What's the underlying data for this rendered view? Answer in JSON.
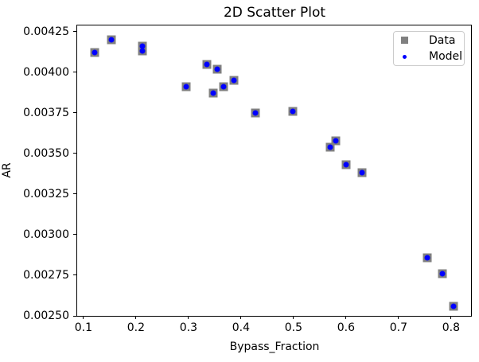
{
  "title": "2D Scatter Plot",
  "axes": {
    "xlabel": "Bypass_Fraction",
    "ylabel": "AR",
    "x_tick_values": [
      0.1,
      0.2,
      0.3,
      0.4,
      0.5,
      0.6,
      0.7,
      0.8
    ],
    "x_tick_labels": [
      "0.1",
      "0.2",
      "0.3",
      "0.4",
      "0.5",
      "0.6",
      "0.7",
      "0.8"
    ],
    "y_tick_values": [
      0.0025,
      0.00275,
      0.003,
      0.00325,
      0.0035,
      0.00375,
      0.004,
      0.00425
    ],
    "y_tick_labels": [
      "0.00250",
      "0.00275",
      "0.00300",
      "0.00325",
      "0.00350",
      "0.00375",
      "0.00400",
      "0.00425"
    ]
  },
  "legend": {
    "entries": [
      {
        "label": "Data",
        "marker": "square",
        "color": "#808080"
      },
      {
        "label": "Model",
        "marker": "circle",
        "color": "#0000ff"
      }
    ]
  },
  "chart_data": {
    "type": "scatter",
    "title": "2D Scatter Plot",
    "xlabel": "Bypass_Fraction",
    "ylabel": "AR",
    "xlim": [
      0.088,
      0.838
    ],
    "ylim": [
      0.0025,
      0.004288
    ],
    "grid": false,
    "legend_position": "upper right",
    "series": [
      {
        "name": "Data",
        "marker": "square",
        "color": "#808080",
        "points": [
          [
            0.122,
            0.00412
          ],
          [
            0.153,
            0.0042
          ],
          [
            0.212,
            0.00416
          ],
          [
            0.212,
            0.00413
          ],
          [
            0.296,
            0.00391
          ],
          [
            0.335,
            0.00405
          ],
          [
            0.347,
            0.00387
          ],
          [
            0.355,
            0.00402
          ],
          [
            0.367,
            0.00391
          ],
          [
            0.387,
            0.00395
          ],
          [
            0.428,
            0.00375
          ],
          [
            0.499,
            0.00376
          ],
          [
            0.57,
            0.00354
          ],
          [
            0.581,
            0.00358
          ],
          [
            0.6,
            0.00343
          ],
          [
            0.631,
            0.00338
          ],
          [
            0.754,
            0.00286
          ],
          [
            0.783,
            0.00276
          ],
          [
            0.804,
            0.00256
          ]
        ]
      },
      {
        "name": "Model",
        "marker": "circle",
        "color": "#0000ff",
        "points": [
          [
            0.122,
            0.00412
          ],
          [
            0.153,
            0.0042
          ],
          [
            0.212,
            0.00416
          ],
          [
            0.212,
            0.00413
          ],
          [
            0.296,
            0.00391
          ],
          [
            0.335,
            0.00405
          ],
          [
            0.347,
            0.00387
          ],
          [
            0.355,
            0.00402
          ],
          [
            0.367,
            0.00391
          ],
          [
            0.387,
            0.00395
          ],
          [
            0.428,
            0.00375
          ],
          [
            0.499,
            0.00376
          ],
          [
            0.57,
            0.00354
          ],
          [
            0.581,
            0.00358
          ],
          [
            0.6,
            0.00343
          ],
          [
            0.631,
            0.00338
          ],
          [
            0.754,
            0.00286
          ],
          [
            0.783,
            0.00276
          ],
          [
            0.804,
            0.00256
          ]
        ]
      }
    ]
  }
}
